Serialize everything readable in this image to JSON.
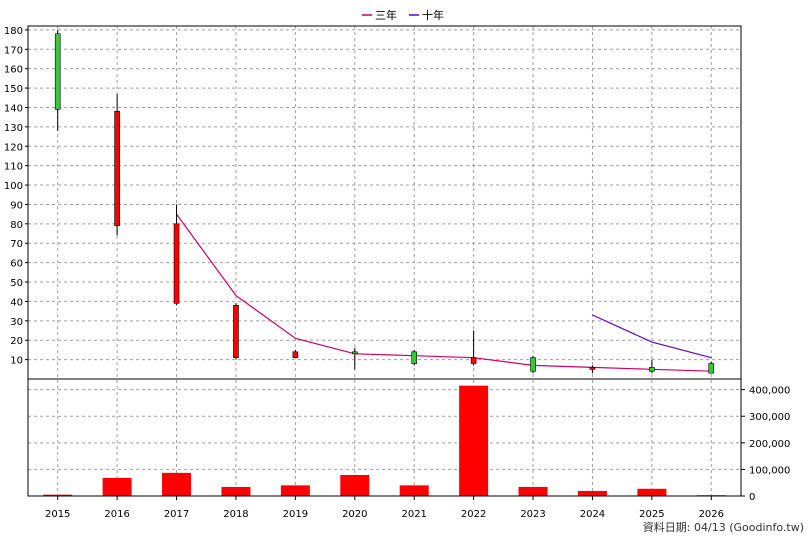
{
  "chart_data": {
    "type": "candlestick+bar",
    "categories": [
      "2015",
      "2016",
      "2017",
      "2018",
      "2019",
      "2020",
      "2021",
      "2022",
      "2023",
      "2024",
      "2025",
      "2026"
    ],
    "legend": [
      {
        "name": "三年",
        "color": "#cc0066"
      },
      {
        "name": "十年",
        "color": "#6600cc"
      }
    ],
    "price_axis": {
      "ticks": [
        10,
        20,
        30,
        40,
        50,
        60,
        70,
        80,
        90,
        100,
        110,
        120,
        130,
        140,
        150,
        160,
        170,
        180
      ],
      "ylim": [
        0,
        182
      ]
    },
    "volume_axis": {
      "ticks": [
        0,
        100000,
        200000,
        300000,
        400000
      ],
      "tick_labels": [
        "0",
        "100,000",
        "200,000",
        "300,000",
        "400,000"
      ],
      "ylim": [
        0,
        440000
      ]
    },
    "candles": [
      {
        "open": 139,
        "close": 178,
        "high": 180,
        "low": 128
      },
      {
        "open": 138,
        "close": 79,
        "high": 147,
        "low": 74
      },
      {
        "open": 80,
        "close": 39,
        "high": 90,
        "low": 38
      },
      {
        "open": 38,
        "close": 11,
        "high": 39,
        "low": 10
      },
      {
        "open": 14,
        "close": 11,
        "high": 15,
        "low": 11
      },
      {
        "open": 13,
        "close": 14,
        "high": 16,
        "low": 5
      },
      {
        "open": 8,
        "close": 14,
        "high": 15,
        "low": 7
      },
      {
        "open": 11,
        "close": 8,
        "high": 25,
        "low": 7
      },
      {
        "open": 4,
        "close": 11,
        "high": 12,
        "low": 3
      },
      {
        "open": 6,
        "close": 5,
        "high": 7,
        "low": 3
      },
      {
        "open": 4,
        "close": 6,
        "high": 10,
        "low": 3
      },
      {
        "open": 3,
        "close": 8,
        "high": 9,
        "low": 3
      }
    ],
    "series": [
      {
        "name": "三年",
        "color": "#cc0066",
        "values": [
          null,
          null,
          85,
          43,
          21,
          13,
          12,
          11,
          7,
          6,
          5,
          4
        ]
      },
      {
        "name": "十年",
        "color": "#6600cc",
        "values": [
          null,
          null,
          null,
          null,
          null,
          null,
          null,
          null,
          null,
          33,
          19,
          11
        ]
      }
    ],
    "volume": [
      5000,
      68000,
      87000,
      34000,
      40000,
      79000,
      40000,
      415000,
      34000,
      19000,
      27000,
      3000
    ],
    "colors": {
      "up": "#33cc33",
      "down": "#ff0000",
      "volume": "#ff0000"
    }
  },
  "footer": "資料日期: 04/13 (Goodinfo.tw)"
}
